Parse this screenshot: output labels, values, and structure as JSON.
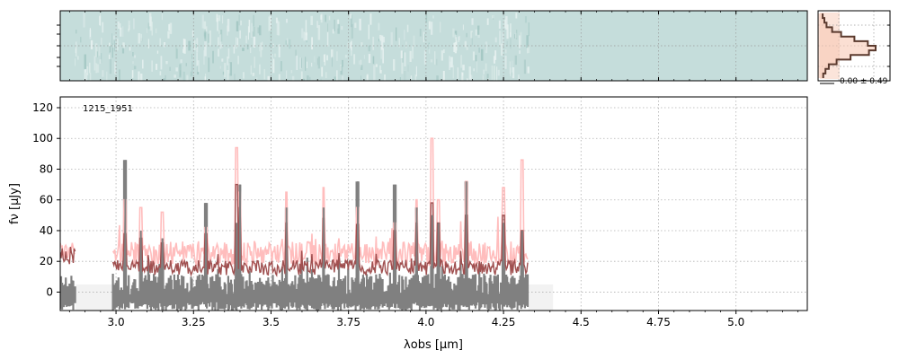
{
  "chart_data": [
    {
      "type": "heatmap",
      "panel": "2d-spectrum",
      "x_range": [
        2.82,
        5.23
      ],
      "trace_extent": [
        2.86,
        4.33
      ],
      "colors": {
        "background": "#c5dddb",
        "streaks": "#eaf3f2",
        "dark_streaks": "#9fc4c0"
      },
      "grid": true
    },
    {
      "type": "line",
      "panel": "cross-dispersion-profile",
      "annotation": "0.00 ± 0.49",
      "profile": [
        0.05,
        0.08,
        0.12,
        0.22,
        0.38,
        0.62,
        0.86,
        1.0,
        0.88,
        0.55,
        0.3,
        0.16,
        0.1,
        0.06
      ],
      "colors": {
        "line": "#5b3a2e",
        "fill": "#f8c9b6"
      }
    },
    {
      "type": "line",
      "panel": "1d-spectrum",
      "label": "1215_1951",
      "xlabel": "λobs [μm]",
      "ylabel": "fν [μJy]",
      "xlim": [
        2.82,
        5.23
      ],
      "ylim": [
        -12,
        127
      ],
      "xticks": [
        "3.0",
        "3.25",
        "3.5",
        "3.75",
        "4.0",
        "4.25",
        "4.5",
        "4.75",
        "5.0"
      ],
      "xtick_values": [
        3.0,
        3.25,
        3.5,
        3.75,
        4.0,
        4.25,
        4.5,
        4.75,
        5.0
      ],
      "yticks": [
        "0",
        "20",
        "40",
        "60",
        "80",
        "100",
        "120"
      ],
      "ytick_values": [
        0,
        20,
        40,
        60,
        80,
        100,
        120
      ],
      "grid": true,
      "segments": [
        [
          2.82,
          2.87
        ],
        [
          2.99,
          4.33
        ]
      ],
      "series": [
        {
          "role": "flux-with-error",
          "color": "#808080",
          "base": 5,
          "noise": 7
        },
        {
          "role": "model-upper",
          "color": "#ffbdbd",
          "base": 22,
          "noise": 8
        },
        {
          "role": "model",
          "color": "#a05050",
          "base": 15,
          "noise": 5
        }
      ],
      "spikes": [
        {
          "x": 3.03,
          "gray": 86,
          "pink": 60,
          "dark": 38
        },
        {
          "x": 3.08,
          "gray": 40,
          "pink": 55,
          "dark": 35
        },
        {
          "x": 3.15,
          "gray": 35,
          "pink": 52,
          "dark": 32
        },
        {
          "x": 3.29,
          "gray": 58,
          "pink": 42,
          "dark": 38
        },
        {
          "x": 3.39,
          "gray": 45,
          "pink": 94,
          "dark": 70
        },
        {
          "x": 3.4,
          "gray": 70,
          "pink": 65,
          "dark": 55
        },
        {
          "x": 3.55,
          "gray": 55,
          "pink": 65,
          "dark": 45
        },
        {
          "x": 3.67,
          "gray": 55,
          "pink": 68,
          "dark": 48
        },
        {
          "x": 3.78,
          "gray": 72,
          "pink": 55,
          "dark": 44
        },
        {
          "x": 3.9,
          "gray": 70,
          "pink": 45,
          "dark": 40
        },
        {
          "x": 3.97,
          "gray": 55,
          "pink": 60,
          "dark": 45
        },
        {
          "x": 4.02,
          "gray": 50,
          "pink": 100,
          "dark": 58
        },
        {
          "x": 4.04,
          "gray": 45,
          "pink": 60,
          "dark": 45
        },
        {
          "x": 4.13,
          "gray": 72,
          "pink": 72,
          "dark": 50
        },
        {
          "x": 4.25,
          "gray": 45,
          "pink": 68,
          "dark": 50
        },
        {
          "x": 4.31,
          "gray": 40,
          "pink": 86,
          "dark": 40
        }
      ],
      "shaded_regions": [
        [
          2.87,
          2.99
        ],
        [
          4.33,
          4.41
        ]
      ]
    }
  ]
}
